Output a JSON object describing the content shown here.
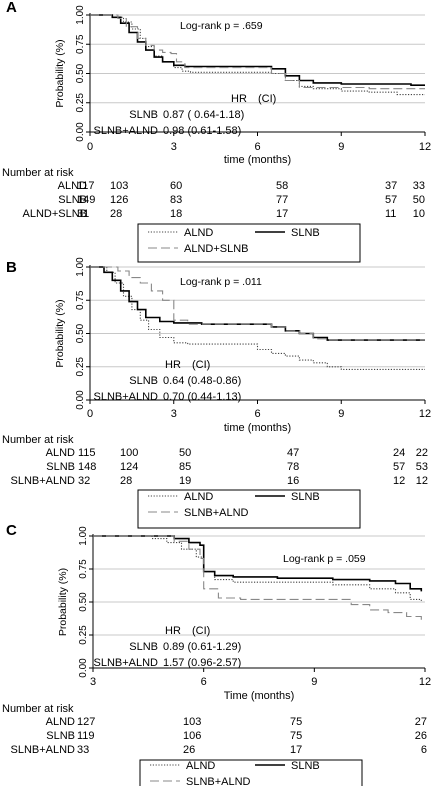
{
  "chart_data": [
    {
      "type": "line",
      "panel_label": "A",
      "ylabel": "Probability (%)",
      "xlabel": "time (months)",
      "xlim": [
        0,
        12
      ],
      "ylim": [
        0,
        1
      ],
      "xticks": [
        "0",
        "3",
        "6",
        "9",
        "12"
      ],
      "yticks": [
        "0.00",
        "0.25",
        "0.50",
        "0.75",
        "1.00"
      ],
      "grid": true,
      "annotation": "Log-rank p = .659",
      "hr_table": {
        "header_hr": "HR",
        "header_ci": "(CI)",
        "rows": [
          {
            "label": "SLNB",
            "text": "0.87 ( 0.64-1.18)"
          },
          {
            "label": "SLNB+ALND",
            "text": "0.98 (0.61-1.58)"
          }
        ]
      },
      "risk_table": {
        "title": "Number at risk",
        "columns_months": [
          0,
          1,
          3,
          6,
          9,
          12
        ],
        "rows": [
          {
            "label": "ALND",
            "values": [
              "117",
              "103",
              "60",
              "58",
              "37",
              "33"
            ]
          },
          {
            "label": "SLNB",
            "values": [
              "149",
              "126",
              "83",
              "77",
              "57",
              "50"
            ]
          },
          {
            "label": "ALND+SLNB",
            "values": [
              "31",
              "28",
              "18",
              "17",
              "11",
              "10"
            ]
          }
        ]
      },
      "legend": [
        "ALND",
        "SLNB",
        "ALND+SLNB"
      ],
      "series": [
        {
          "name": "ALND",
          "style": "dotted",
          "color": "#444444",
          "x": [
            0,
            0.8,
            1.2,
            1.5,
            1.8,
            2.0,
            2.3,
            2.6,
            3.0,
            3.3,
            3.6,
            6.0,
            6.5,
            7.0,
            7.5,
            8.0,
            9.0,
            10.0,
            11.0,
            12.0
          ],
          "y": [
            1.0,
            0.98,
            0.94,
            0.88,
            0.8,
            0.73,
            0.65,
            0.6,
            0.55,
            0.52,
            0.51,
            0.51,
            0.5,
            0.44,
            0.39,
            0.37,
            0.35,
            0.34,
            0.32,
            0.32
          ]
        },
        {
          "name": "SLNB",
          "style": "solid",
          "color": "#000000",
          "x": [
            0,
            0.8,
            1.1,
            1.4,
            1.7,
            2.0,
            2.3,
            2.6,
            3.0,
            3.4,
            4.0,
            6.0,
            6.5,
            7.0,
            7.5,
            8.0,
            9.0,
            10.0,
            11.5,
            12.0
          ],
          "y": [
            1.0,
            0.98,
            0.93,
            0.85,
            0.77,
            0.7,
            0.64,
            0.6,
            0.57,
            0.56,
            0.56,
            0.56,
            0.54,
            0.48,
            0.44,
            0.42,
            0.41,
            0.41,
            0.4,
            0.4
          ]
        },
        {
          "name": "ALND+SLNB",
          "style": "dashed",
          "color": "#888888",
          "x": [
            0,
            1.0,
            1.3,
            1.7,
            2.0,
            2.3,
            2.6,
            2.9,
            3.1,
            3.4,
            6.0,
            6.5,
            7.0,
            7.5,
            9.0,
            10.0,
            12.0
          ],
          "y": [
            1.0,
            0.97,
            0.9,
            0.8,
            0.74,
            0.7,
            0.68,
            0.67,
            0.6,
            0.55,
            0.55,
            0.5,
            0.44,
            0.38,
            0.38,
            0.37,
            0.37
          ]
        }
      ]
    },
    {
      "type": "line",
      "panel_label": "B",
      "ylabel": "Probability (%)",
      "xlabel": "time (months)",
      "xlim": [
        0,
        12
      ],
      "ylim": [
        0,
        1
      ],
      "xticks": [
        "0",
        "3",
        "6",
        "9",
        "12"
      ],
      "yticks": [
        "0.00",
        "0.25",
        "0.50",
        "0.75",
        "1.00"
      ],
      "grid": true,
      "annotation": "Log-rank p = .011",
      "hr_table": {
        "header_hr": "HR",
        "header_ci": "(CI)",
        "rows": [
          {
            "label": "SLNB",
            "text": "0.64 (0.48-0.86)"
          },
          {
            "label": "SLNB+ALND",
            "text": "0.70 (0.44-1.13)"
          }
        ]
      },
      "risk_table": {
        "title": "Number at risk",
        "columns_months": [
          0,
          1,
          3,
          6,
          9,
          12
        ],
        "rows": [
          {
            "label": "ALND",
            "values": [
              "115",
              "100",
              "50",
              "47",
              "24",
              "22"
            ]
          },
          {
            "label": "SLNB",
            "values": [
              "148",
              "124",
              "85",
              "78",
              "57",
              "53"
            ]
          },
          {
            "label": "SLNB+ALND",
            "values": [
              "32",
              "28",
              "19",
              "16",
              "12",
              "12"
            ]
          }
        ]
      },
      "legend": [
        "ALND",
        "SLNB",
        "SLNB+ALND"
      ],
      "series": [
        {
          "name": "ALND",
          "style": "dotted",
          "color": "#444444",
          "x": [
            0,
            0.6,
            0.9,
            1.2,
            1.5,
            1.8,
            2.1,
            2.5,
            3.0,
            3.5,
            5.5,
            6.0,
            6.5,
            7.0,
            7.5,
            8.0,
            8.5,
            9.0,
            12.0
          ],
          "y": [
            1.0,
            0.96,
            0.88,
            0.78,
            0.68,
            0.6,
            0.53,
            0.47,
            0.43,
            0.42,
            0.42,
            0.38,
            0.35,
            0.33,
            0.3,
            0.28,
            0.25,
            0.23,
            0.23
          ]
        },
        {
          "name": "SLNB",
          "style": "solid",
          "color": "#000000",
          "x": [
            0,
            0.5,
            0.8,
            1.1,
            1.4,
            1.7,
            2.0,
            2.5,
            3.0,
            4.0,
            6.0,
            6.5,
            7.0,
            7.5,
            8.0,
            8.5,
            9.0,
            12.0
          ],
          "y": [
            1.0,
            0.96,
            0.9,
            0.82,
            0.74,
            0.68,
            0.62,
            0.59,
            0.58,
            0.57,
            0.57,
            0.55,
            0.52,
            0.5,
            0.47,
            0.45,
            0.45,
            0.45
          ]
        },
        {
          "name": "SLNB+ALND",
          "style": "dashed",
          "color": "#888888",
          "x": [
            0,
            1.0,
            1.4,
            1.8,
            2.2,
            2.6,
            3.0,
            3.5,
            6.0,
            6.5,
            7.0,
            7.5,
            8.0,
            8.5,
            9.0,
            12.0
          ],
          "y": [
            1.0,
            0.97,
            0.92,
            0.88,
            0.82,
            0.75,
            0.6,
            0.57,
            0.57,
            0.55,
            0.52,
            0.5,
            0.46,
            0.45,
            0.45,
            0.45
          ]
        }
      ]
    },
    {
      "type": "line",
      "panel_label": "C",
      "ylabel": "Probability (%)",
      "xlabel": "Time (months)",
      "xlim": [
        3,
        12
      ],
      "ylim": [
        0,
        1
      ],
      "xticks": [
        "3",
        "6",
        "9",
        "12"
      ],
      "yticks": [
        "0.00",
        "0.25",
        "0.50",
        "0.75",
        "1.00"
      ],
      "grid": true,
      "annotation": "Log-rank p = .059",
      "hr_table": {
        "header_hr": "HR",
        "header_ci": "(CI)",
        "rows": [
          {
            "label": "SLNB",
            "text": "0.89 (0.61-1.29)"
          },
          {
            "label": "SLNB+ALND",
            "text": "1.57 (0.96-2.57)"
          }
        ]
      },
      "risk_table": {
        "title": "Number at risk",
        "columns_months": [
          3,
          6,
          9,
          12
        ],
        "rows": [
          {
            "label": "ALND",
            "values": [
              "127",
              "103",
              "75",
              "27"
            ]
          },
          {
            "label": "SLNB",
            "values": [
              "119",
              "106",
              "75",
              "26"
            ]
          },
          {
            "label": "SLNB+ALND",
            "values": [
              "33",
              "26",
              "17",
              "6"
            ]
          }
        ]
      },
      "legend": [
        "ALND",
        "SLNB",
        "SLNB+ALND"
      ],
      "series": [
        {
          "name": "ALND",
          "style": "dotted",
          "color": "#444444",
          "x": [
            3,
            4.2,
            4.6,
            5.0,
            5.4,
            5.8,
            6.0,
            6.3,
            6.8,
            8.0,
            9.5,
            10.5,
            11.2,
            11.6,
            11.9
          ],
          "y": [
            1.0,
            1.0,
            0.98,
            0.95,
            0.9,
            0.84,
            0.73,
            0.67,
            0.65,
            0.65,
            0.63,
            0.6,
            0.57,
            0.52,
            0.5
          ]
        },
        {
          "name": "SLNB",
          "style": "solid",
          "color": "#000000",
          "x": [
            3,
            4.8,
            5.2,
            5.6,
            5.9,
            6.0,
            6.3,
            6.8,
            8.0,
            9.5,
            10.5,
            11.2,
            11.6,
            11.9
          ],
          "y": [
            1.0,
            1.0,
            0.98,
            0.95,
            0.93,
            0.73,
            0.7,
            0.69,
            0.68,
            0.67,
            0.66,
            0.64,
            0.6,
            0.58
          ]
        },
        {
          "name": "SLNB+ALND",
          "style": "dashed",
          "color": "#888888",
          "x": [
            3,
            4.5,
            5.2,
            5.6,
            5.9,
            6.0,
            6.4,
            7.0,
            9.0,
            10.0,
            10.5,
            11.0,
            11.5,
            11.9
          ],
          "y": [
            1.0,
            1.0,
            0.96,
            0.9,
            0.83,
            0.6,
            0.53,
            0.52,
            0.52,
            0.48,
            0.44,
            0.42,
            0.39,
            0.36
          ]
        }
      ]
    }
  ]
}
